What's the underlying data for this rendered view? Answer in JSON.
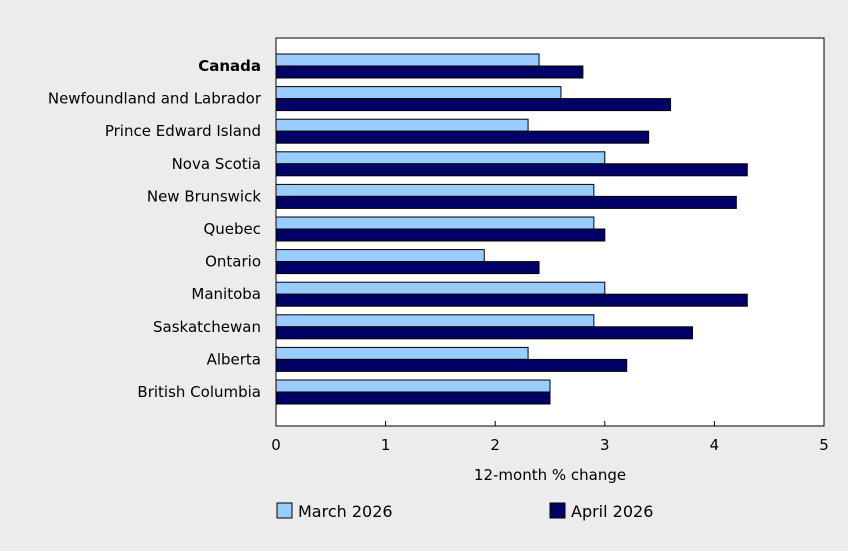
{
  "chart_data": {
    "type": "bar",
    "orientation": "horizontal",
    "categories": [
      "Canada",
      "Newfoundland and Labrador",
      "Prince Edward Island",
      "Nova Scotia",
      "New Brunswick",
      "Quebec",
      "Ontario",
      "Manitoba",
      "Saskatchewan",
      "Alberta",
      "British Columbia"
    ],
    "bold_categories": [
      "Canada"
    ],
    "series": [
      {
        "name": "March 2026",
        "color": "#99ccff",
        "values": [
          2.4,
          2.6,
          2.3,
          3.0,
          2.9,
          2.9,
          1.9,
          3.0,
          2.9,
          2.3,
          2.5
        ]
      },
      {
        "name": "April 2026",
        "color": "#000066",
        "values": [
          2.8,
          3.6,
          3.4,
          4.3,
          4.2,
          3.0,
          2.4,
          4.3,
          3.8,
          3.2,
          2.5
        ]
      }
    ],
    "xlabel": "12-month % change",
    "ylabel": "",
    "xlim": [
      0,
      5
    ],
    "xticks": [
      "0",
      "1",
      "2",
      "3",
      "4",
      "5"
    ],
    "grid": false,
    "legend_position": "bottom"
  }
}
